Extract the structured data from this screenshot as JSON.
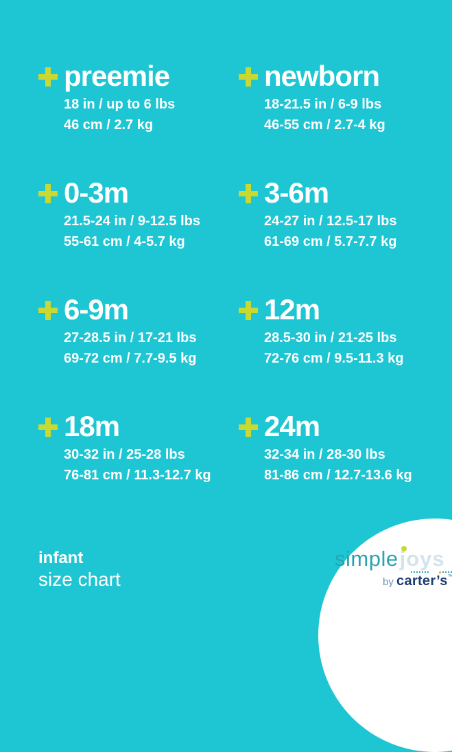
{
  "page": {
    "background_color": "#1ec5d3",
    "plus_accent_color": "#c9d932",
    "text_color": "#ffffff"
  },
  "sizes": [
    {
      "name": "preemie",
      "imperial": "18 in / up to 6 lbs",
      "metric": "46 cm / 2.7 kg"
    },
    {
      "name": "newborn",
      "imperial": "18-21.5 in / 6-9 lbs",
      "metric": "46-55 cm / 2.7-4 kg"
    },
    {
      "name": "0-3m",
      "imperial": "21.5-24 in / 9-12.5 lbs",
      "metric": "55-61 cm / 4-5.7 kg"
    },
    {
      "name": "3-6m",
      "imperial": "24-27 in / 12.5-17 lbs",
      "metric": "61-69 cm / 5.7-7.7 kg"
    },
    {
      "name": "6-9m",
      "imperial": "27-28.5 in / 17-21 lbs",
      "metric": "69-72 cm / 7.7-9.5 kg"
    },
    {
      "name": "12m",
      "imperial": "28.5-30 in / 21-25 lbs",
      "metric": "72-76 cm / 9.5-11.3 kg"
    },
    {
      "name": "18m",
      "imperial": "30-32 in / 25-28 lbs",
      "metric": "76-81 cm / 11.3-12.7 kg"
    },
    {
      "name": "24m",
      "imperial": "32-34 in / 28-30 lbs",
      "metric": "81-86 cm / 12.7-13.6 kg"
    }
  ],
  "footer": {
    "category": "infant",
    "subtitle": "size chart"
  },
  "logo": {
    "word1": "simple",
    "word2": "joys",
    "byline_prefix": "by ",
    "byline_brand": "carter’s",
    "trademark": "™",
    "colors": {
      "word1": "#2aa3b1",
      "word2": "#d3e4ea",
      "j_dot": "#c9d932",
      "byline_prefix": "#6f93ad",
      "byline_brand": "#1d3e70",
      "circle": "#ffffff"
    }
  }
}
